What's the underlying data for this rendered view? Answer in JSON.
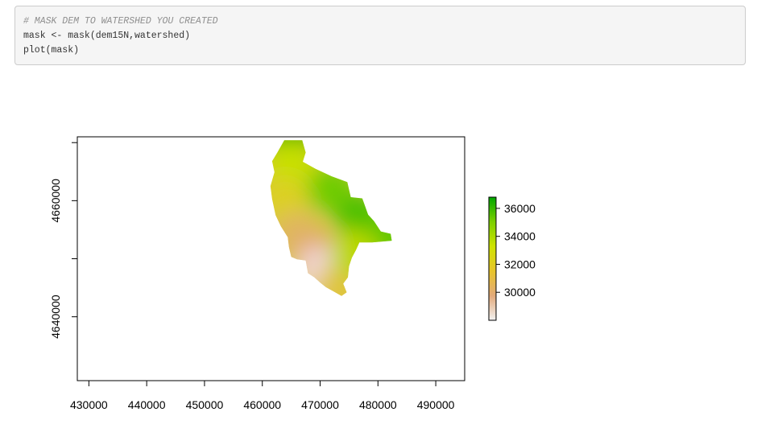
{
  "code": {
    "lines": [
      {
        "text": "# MASK DEM TO WATERSHED YOU CREATED",
        "kind": "comment"
      },
      {
        "text": "mask <- mask(dem15N,watershed)",
        "kind": "code"
      },
      {
        "text": "plot(mask)",
        "kind": "code"
      }
    ]
  },
  "chart_data": {
    "type": "heatmap",
    "title": "",
    "xlabel": "",
    "ylabel": "",
    "xlim": [
      428000,
      495000
    ],
    "ylim": [
      4629000,
      4671000
    ],
    "x_ticks": [
      430000,
      440000,
      450000,
      460000,
      470000,
      480000,
      490000
    ],
    "x_tick_labels": [
      "430000",
      "440000",
      "450000",
      "460000",
      "470000",
      "480000",
      "490000"
    ],
    "y_ticks": [
      4640000,
      4650000,
      4660000,
      4670000
    ],
    "y_tick_labels": [
      "4640000",
      "",
      "4660000",
      ""
    ],
    "grid": false,
    "legend": {
      "placement": "right",
      "range": [
        28000,
        36800
      ],
      "ticks": [
        30000,
        32000,
        34000,
        36000
      ],
      "tick_labels": [
        "30000",
        "32000",
        "34000",
        "36000"
      ],
      "colors": [
        "#f2f2f2",
        "#e3aa7a",
        "#e8c52a",
        "#cfe300",
        "#7cd000",
        "#00a600"
      ]
    },
    "raster": {
      "description": "masked DEM of watershed",
      "outline": [
        [
          463800,
          4670400
        ],
        [
          466900,
          4670400
        ],
        [
          467500,
          4668300
        ],
        [
          467000,
          4666700
        ],
        [
          469200,
          4665500
        ],
        [
          472000,
          4664200
        ],
        [
          474700,
          4663200
        ],
        [
          475300,
          4660600
        ],
        [
          477300,
          4660400
        ],
        [
          478300,
          4657600
        ],
        [
          479300,
          4656500
        ],
        [
          480500,
          4654700
        ],
        [
          482200,
          4654300
        ],
        [
          482400,
          4653100
        ],
        [
          479000,
          4652800
        ],
        [
          476800,
          4652800
        ],
        [
          476200,
          4651500
        ],
        [
          475500,
          4650200
        ],
        [
          475000,
          4648700
        ],
        [
          474800,
          4646800
        ],
        [
          474000,
          4645700
        ],
        [
          474600,
          4644200
        ],
        [
          473700,
          4643600
        ],
        [
          472600,
          4644200
        ],
        [
          471000,
          4645100
        ],
        [
          470000,
          4645900
        ],
        [
          469000,
          4646800
        ],
        [
          467900,
          4647500
        ],
        [
          467500,
          4649700
        ],
        [
          466000,
          4649900
        ],
        [
          465000,
          4650300
        ],
        [
          464600,
          4652000
        ],
        [
          464400,
          4653700
        ],
        [
          463200,
          4655600
        ],
        [
          462300,
          4657500
        ],
        [
          461700,
          4660300
        ],
        [
          461400,
          4662500
        ],
        [
          462100,
          4664900
        ],
        [
          461700,
          4666800
        ],
        [
          462600,
          4668300
        ]
      ],
      "stops": [
        {
          "at": [
            465000,
            4670500
          ],
          "color": "#18a800"
        },
        {
          "at": [
            465000,
            4666500
          ],
          "color": "#c8e000"
        },
        {
          "at": [
            472000,
            4662000
          ],
          "color": "#70cc00"
        },
        {
          "at": [
            477000,
            4657000
          ],
          "color": "#48c000"
        },
        {
          "at": [
            482000,
            4653500
          ],
          "color": "#60c800"
        },
        {
          "at": [
            464000,
            4660000
          ],
          "color": "#dcd020"
        },
        {
          "at": [
            466000,
            4654000
          ],
          "color": "#e0b560"
        },
        {
          "at": [
            470000,
            4650000
          ],
          "color": "#e3a37a"
        },
        {
          "at": [
            470000,
            4648000
          ],
          "color": "#f0d4d0"
        },
        {
          "at": [
            473500,
            4645000
          ],
          "color": "#e0c440"
        },
        {
          "at": [
            476000,
            4651000
          ],
          "color": "#bcd800"
        }
      ]
    }
  }
}
